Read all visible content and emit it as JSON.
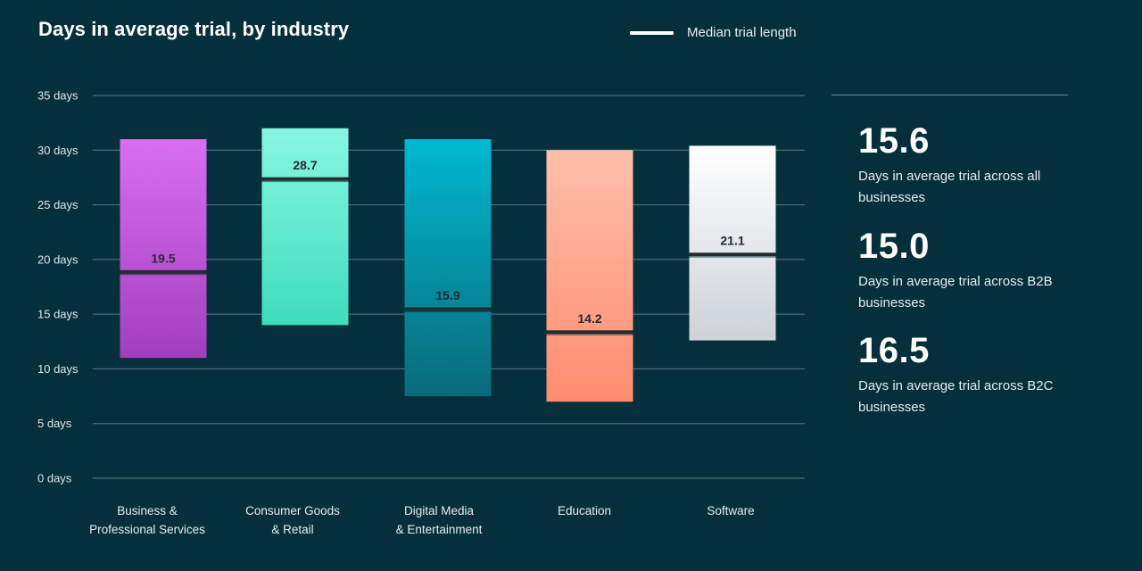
{
  "title": "Days in average trial, by industry",
  "legend": {
    "median_label": "Median trial length"
  },
  "colors": {
    "background": "#062f3c",
    "grid": "#5d7b85",
    "median_line": "#222a32"
  },
  "chart_data": {
    "type": "bar",
    "subtype": "floating-range-with-median",
    "title": "Days in average trial, by industry",
    "xlabel": "",
    "ylabel": "",
    "ylim": [
      0,
      35
    ],
    "y_ticks": [
      "0 days",
      "5 days",
      "10 days",
      "15 days",
      "20 days",
      "25 days",
      "30 days",
      "35 days"
    ],
    "y_tick_values": [
      0,
      5,
      10,
      15,
      20,
      25,
      30,
      35
    ],
    "grid": true,
    "legend_position": "top-right",
    "categories": [
      [
        "Business &",
        "Professional Services"
      ],
      [
        "Consumer Goods",
        "& Retail"
      ],
      [
        "Digital Media",
        "& Entertainment"
      ],
      [
        "Education"
      ],
      [
        "Software"
      ]
    ],
    "series": [
      {
        "name": "Median trial length",
        "values": [
          19.5,
          28.7,
          15.9,
          14.2,
          21.1
        ]
      }
    ],
    "ranges": [
      {
        "low": 11.0,
        "high": 31.0,
        "median_line": 18.9,
        "colors": [
          "#d96ef0",
          "#a23fbd"
        ]
      },
      {
        "low": 14.0,
        "high": 32.0,
        "median_line": 27.4,
        "colors": [
          "#88f7e3",
          "#3fdcbc"
        ]
      },
      {
        "low": 7.5,
        "high": 31.0,
        "median_line": 15.5,
        "colors": [
          "#00b9d0",
          "#0a6a7a"
        ]
      },
      {
        "low": 7.0,
        "high": 30.0,
        "median_line": 13.4,
        "colors": [
          "#ffbfaa",
          "#ff8c70"
        ]
      },
      {
        "low": 12.6,
        "high": 30.4,
        "median_line": 20.5,
        "colors": [
          "#ffffff",
          "#cdd2d9"
        ]
      }
    ]
  },
  "stats": [
    {
      "value": "15.6",
      "desc": "Days in average trial across all businesses"
    },
    {
      "value": "15.0",
      "desc": "Days in average trial across B2B businesses"
    },
    {
      "value": "16.5",
      "desc": "Days in average trial across B2C businesses"
    }
  ]
}
